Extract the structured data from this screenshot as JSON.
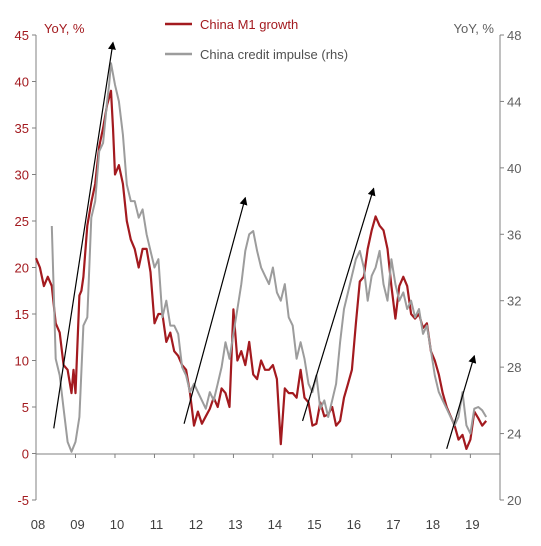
{
  "colors": {
    "m1": "#a31a1f",
    "impulse": "#9c9c9c",
    "arrow": "#000000",
    "axis": "#808080",
    "left_text": "#a31a1f",
    "right_text": "#606060",
    "bottom_text": "#404040"
  },
  "chart_data": {
    "type": "line",
    "title": "",
    "left_axis_label": "YoY, %",
    "right_axis_label": "YoY, %",
    "x_ticks": [
      "08",
      "09",
      "10",
      "11",
      "12",
      "13",
      "14",
      "15",
      "16",
      "17",
      "18",
      "19"
    ],
    "xlim": [
      2008.0,
      2019.75
    ],
    "ylim_left": [
      -5,
      45
    ],
    "ylim_right": [
      20,
      48
    ],
    "left_ticks": [
      -5,
      0,
      5,
      10,
      15,
      20,
      25,
      30,
      35,
      40,
      45
    ],
    "right_ticks": [
      20,
      24,
      28,
      32,
      36,
      40,
      44,
      48
    ],
    "grid": false,
    "legend_position": "top-center",
    "series": [
      {
        "name": "China M1 growth",
        "axis": "left",
        "color": "#a31a1f",
        "x": [
          2008.0,
          2008.1,
          2008.2,
          2008.3,
          2008.4,
          2008.5,
          2008.6,
          2008.7,
          2008.8,
          2008.9,
          2008.95,
          2009.0,
          2009.1,
          2009.15,
          2009.2,
          2009.3,
          2009.4,
          2009.5,
          2009.6,
          2009.7,
          2009.8,
          2009.9,
          2009.95,
          2010.0,
          2010.1,
          2010.2,
          2010.3,
          2010.4,
          2010.5,
          2010.6,
          2010.7,
          2010.8,
          2010.9,
          2011.0,
          2011.1,
          2011.2,
          2011.3,
          2011.4,
          2011.5,
          2011.6,
          2011.7,
          2011.8,
          2011.9,
          2012.0,
          2012.1,
          2012.2,
          2012.3,
          2012.4,
          2012.5,
          2012.6,
          2012.7,
          2012.8,
          2012.9,
          2013.0,
          2013.1,
          2013.2,
          2013.3,
          2013.4,
          2013.5,
          2013.6,
          2013.7,
          2013.8,
          2013.9,
          2014.0,
          2014.1,
          2014.2,
          2014.3,
          2014.4,
          2014.5,
          2014.6,
          2014.7,
          2014.8,
          2014.9,
          2015.0,
          2015.1,
          2015.2,
          2015.3,
          2015.4,
          2015.5,
          2015.6,
          2015.7,
          2015.8,
          2015.9,
          2016.0,
          2016.1,
          2016.2,
          2016.3,
          2016.4,
          2016.5,
          2016.6,
          2016.7,
          2016.8,
          2016.9,
          2017.0,
          2017.1,
          2017.2,
          2017.3,
          2017.4,
          2017.5,
          2017.6,
          2017.7,
          2017.8,
          2017.9,
          2018.0,
          2018.1,
          2018.2,
          2018.3,
          2018.4,
          2018.5,
          2018.6,
          2018.7,
          2018.8,
          2018.9,
          2019.0,
          2019.1,
          2019.2,
          2019.3,
          2019.4
        ],
        "values": [
          21,
          20,
          18,
          19,
          18,
          14,
          13,
          9.5,
          9,
          6.5,
          9,
          6.5,
          17,
          17.5,
          19,
          24.5,
          27,
          29,
          33,
          35,
          37.5,
          39,
          35,
          30,
          31,
          29,
          25,
          23,
          22,
          20,
          22,
          22,
          19.5,
          14,
          15,
          15,
          12,
          13,
          11,
          10.5,
          9.5,
          9,
          6.5,
          3,
          4.5,
          3.2,
          4,
          4.8,
          6,
          5,
          7,
          6.5,
          5,
          15.5,
          10,
          11,
          9.5,
          12,
          8.5,
          8,
          10,
          9,
          9,
          9.5,
          8,
          1,
          7,
          6.5,
          6.5,
          6,
          9,
          6,
          5.5,
          3,
          3.2,
          5.5,
          4,
          4.2,
          5,
          3,
          3.5,
          6,
          7.5,
          9,
          14,
          18.5,
          19,
          22,
          24,
          25.5,
          24.5,
          24,
          22,
          18,
          14.5,
          18,
          19,
          18,
          15,
          14.5,
          15,
          13.5,
          14,
          11,
          10,
          8.5,
          6.5,
          5,
          4,
          3,
          1.5,
          2,
          0.5,
          1.5,
          4.5,
          3.8,
          3,
          3.5
        ]
      },
      {
        "name": "China credit impulse (rhs)",
        "axis": "right",
        "color": "#9c9c9c",
        "x": [
          2008.4,
          2008.5,
          2008.6,
          2008.7,
          2008.8,
          2008.9,
          2009.0,
          2009.1,
          2009.2,
          2009.3,
          2009.4,
          2009.5,
          2009.6,
          2009.7,
          2009.8,
          2009.85,
          2009.9,
          2010.0,
          2010.1,
          2010.2,
          2010.3,
          2010.4,
          2010.5,
          2010.6,
          2010.7,
          2010.8,
          2010.9,
          2011.0,
          2011.1,
          2011.2,
          2011.3,
          2011.4,
          2011.5,
          2011.6,
          2011.7,
          2011.8,
          2011.9,
          2012.0,
          2012.1,
          2012.2,
          2012.3,
          2012.4,
          2012.5,
          2012.6,
          2012.7,
          2012.8,
          2012.9,
          2013.0,
          2013.1,
          2013.2,
          2013.3,
          2013.4,
          2013.5,
          2013.6,
          2013.7,
          2013.8,
          2013.9,
          2014.0,
          2014.1,
          2014.2,
          2014.3,
          2014.4,
          2014.5,
          2014.6,
          2014.7,
          2014.8,
          2014.9,
          2015.0,
          2015.1,
          2015.2,
          2015.3,
          2015.4,
          2015.5,
          2015.6,
          2015.7,
          2015.8,
          2015.9,
          2016.0,
          2016.1,
          2016.2,
          2016.3,
          2016.4,
          2016.5,
          2016.6,
          2016.7,
          2016.8,
          2016.9,
          2017.0,
          2017.1,
          2017.2,
          2017.3,
          2017.4,
          2017.5,
          2017.6,
          2017.7,
          2017.8,
          2017.9,
          2018.0,
          2018.1,
          2018.2,
          2018.3,
          2018.4,
          2018.5,
          2018.6,
          2018.7,
          2018.8,
          2018.9,
          2019.0,
          2019.1,
          2019.2,
          2019.3,
          2019.4
        ],
        "values": [
          36.5,
          28.5,
          27.5,
          25.5,
          23.5,
          22.9,
          23.5,
          25,
          30.5,
          31,
          37,
          38,
          41,
          41.5,
          44,
          45,
          46.3,
          45,
          44,
          42,
          39,
          38,
          38,
          37,
          37.5,
          36,
          35,
          34,
          34.5,
          31,
          32,
          30.5,
          30.5,
          30,
          28,
          27.5,
          26.5,
          27,
          26.5,
          26,
          25.5,
          26.5,
          26,
          27,
          28,
          29.5,
          28.5,
          30,
          31.5,
          33,
          35,
          36,
          36.2,
          35,
          34,
          33.5,
          33,
          34,
          32.5,
          32,
          33,
          31,
          30.5,
          28.5,
          29.5,
          28.5,
          27,
          26.5,
          27.5,
          25.5,
          26,
          25,
          26,
          27,
          29.5,
          31.5,
          32.5,
          33.5,
          34.5,
          35,
          34,
          32,
          33.5,
          34,
          35,
          33,
          32,
          34.5,
          33,
          32,
          32.5,
          31.5,
          32,
          31,
          31.5,
          30,
          30.5,
          29,
          27.5,
          26.5,
          26,
          25.5,
          25,
          24.5,
          25,
          26.5,
          24.5,
          24,
          25.5,
          25.6,
          25.4,
          25
        ]
      }
    ],
    "annotations": [
      {
        "type": "arrow",
        "from": [
          2008.45,
          2.7
        ],
        "to": [
          2009.95,
          44.2
        ]
      },
      {
        "type": "arrow",
        "from": [
          2011.75,
          3.2
        ],
        "to": [
          2013.3,
          27.5
        ]
      },
      {
        "type": "arrow",
        "from": [
          2014.75,
          3.5
        ],
        "to": [
          2016.55,
          28.5
        ]
      },
      {
        "type": "arrow",
        "from": [
          2018.4,
          0.5
        ],
        "to": [
          2019.1,
          10.5
        ]
      }
    ]
  }
}
